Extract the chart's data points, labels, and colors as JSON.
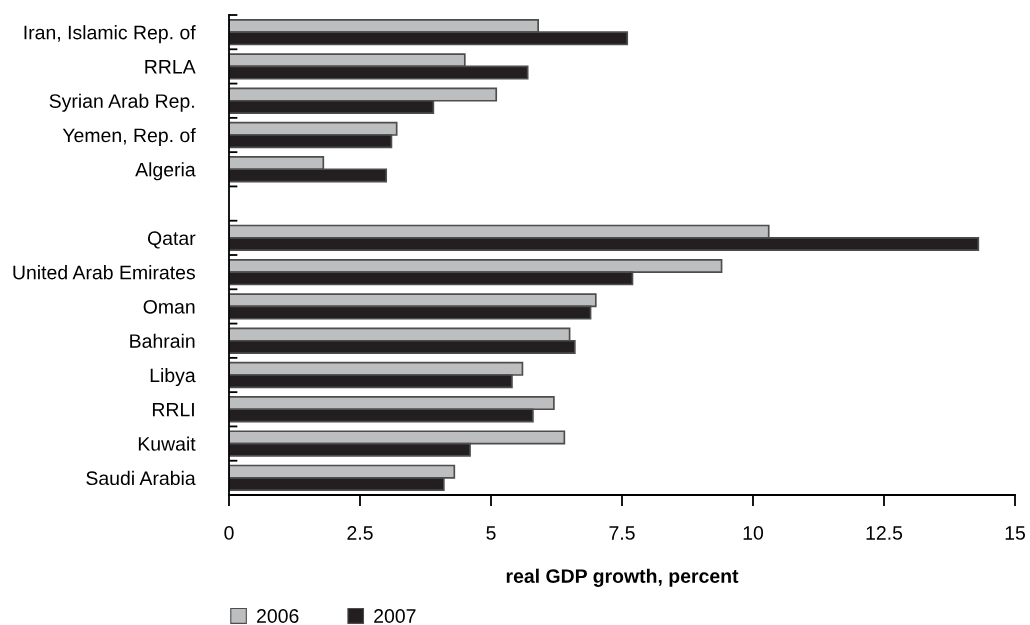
{
  "chart_data": {
    "type": "bar",
    "orientation": "horizontal",
    "xlabel": "real GDP growth, percent",
    "categories": [
      "Iran, Islamic Rep. of",
      "RRLA",
      "Syrian Arab Rep.",
      "Yemen, Rep. of",
      "Algeria",
      null,
      "Qatar",
      "United Arab Emirates",
      "Oman",
      "Bahrain",
      "Libya",
      "RRLI",
      "Kuwait",
      "Saudi Arabia"
    ],
    "series": [
      {
        "name": "2006",
        "color": "#bdbec0",
        "values": [
          5.9,
          4.5,
          5.1,
          3.2,
          1.8,
          null,
          10.3,
          9.4,
          7.0,
          6.5,
          5.6,
          6.2,
          6.4,
          4.3
        ]
      },
      {
        "name": "2007",
        "color": "#231f20",
        "values": [
          7.6,
          5.7,
          3.9,
          3.1,
          3.0,
          null,
          14.3,
          7.7,
          6.9,
          6.6,
          5.4,
          5.8,
          4.6,
          4.1
        ]
      }
    ],
    "xlim": [
      0,
      15
    ],
    "xticks": [
      0,
      2.5,
      5,
      7.5,
      10,
      12.5,
      15
    ],
    "grid": false,
    "legend": "bottom left"
  }
}
